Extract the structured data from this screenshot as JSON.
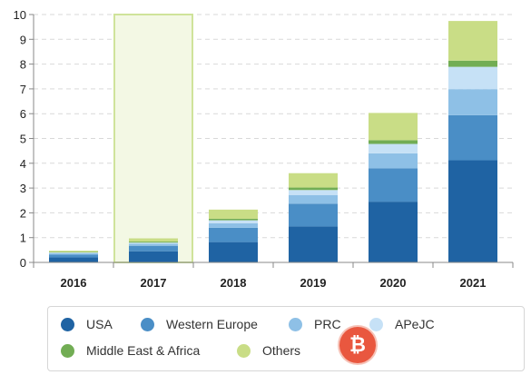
{
  "chart_data": {
    "type": "bar",
    "stacked": true,
    "categories": [
      "2016",
      "2017",
      "2018",
      "2019",
      "2020",
      "2021"
    ],
    "ylim": [
      0,
      10
    ],
    "yticks": [
      0,
      1,
      2,
      3,
      4,
      5,
      6,
      7,
      8,
      9,
      10
    ],
    "grid": true,
    "highlighted_category": "2017",
    "legend_position": "bottom",
    "series": [
      {
        "name": "USA",
        "color": "#1f63a3",
        "values": [
          0.2,
          0.45,
          0.82,
          1.45,
          2.45,
          4.12
        ]
      },
      {
        "name": "Western Europe",
        "color": "#4a8ec6",
        "values": [
          0.12,
          0.22,
          0.58,
          0.92,
          1.35,
          1.82
        ]
      },
      {
        "name": "PRC",
        "color": "#8ec0e6",
        "values": [
          0.05,
          0.08,
          0.18,
          0.35,
          0.6,
          1.05
        ]
      },
      {
        "name": "APeJC",
        "color": "#c6e1f6",
        "values": [
          0.03,
          0.05,
          0.12,
          0.2,
          0.38,
          0.9
        ]
      },
      {
        "name": "Middle East & Africa",
        "color": "#72ad54",
        "values": [
          0.02,
          0.04,
          0.06,
          0.1,
          0.15,
          0.25
        ]
      },
      {
        "name": "Others",
        "color": "#c9dd86",
        "values": [
          0.05,
          0.13,
          0.37,
          0.58,
          1.1,
          1.6
        ]
      }
    ]
  }
}
